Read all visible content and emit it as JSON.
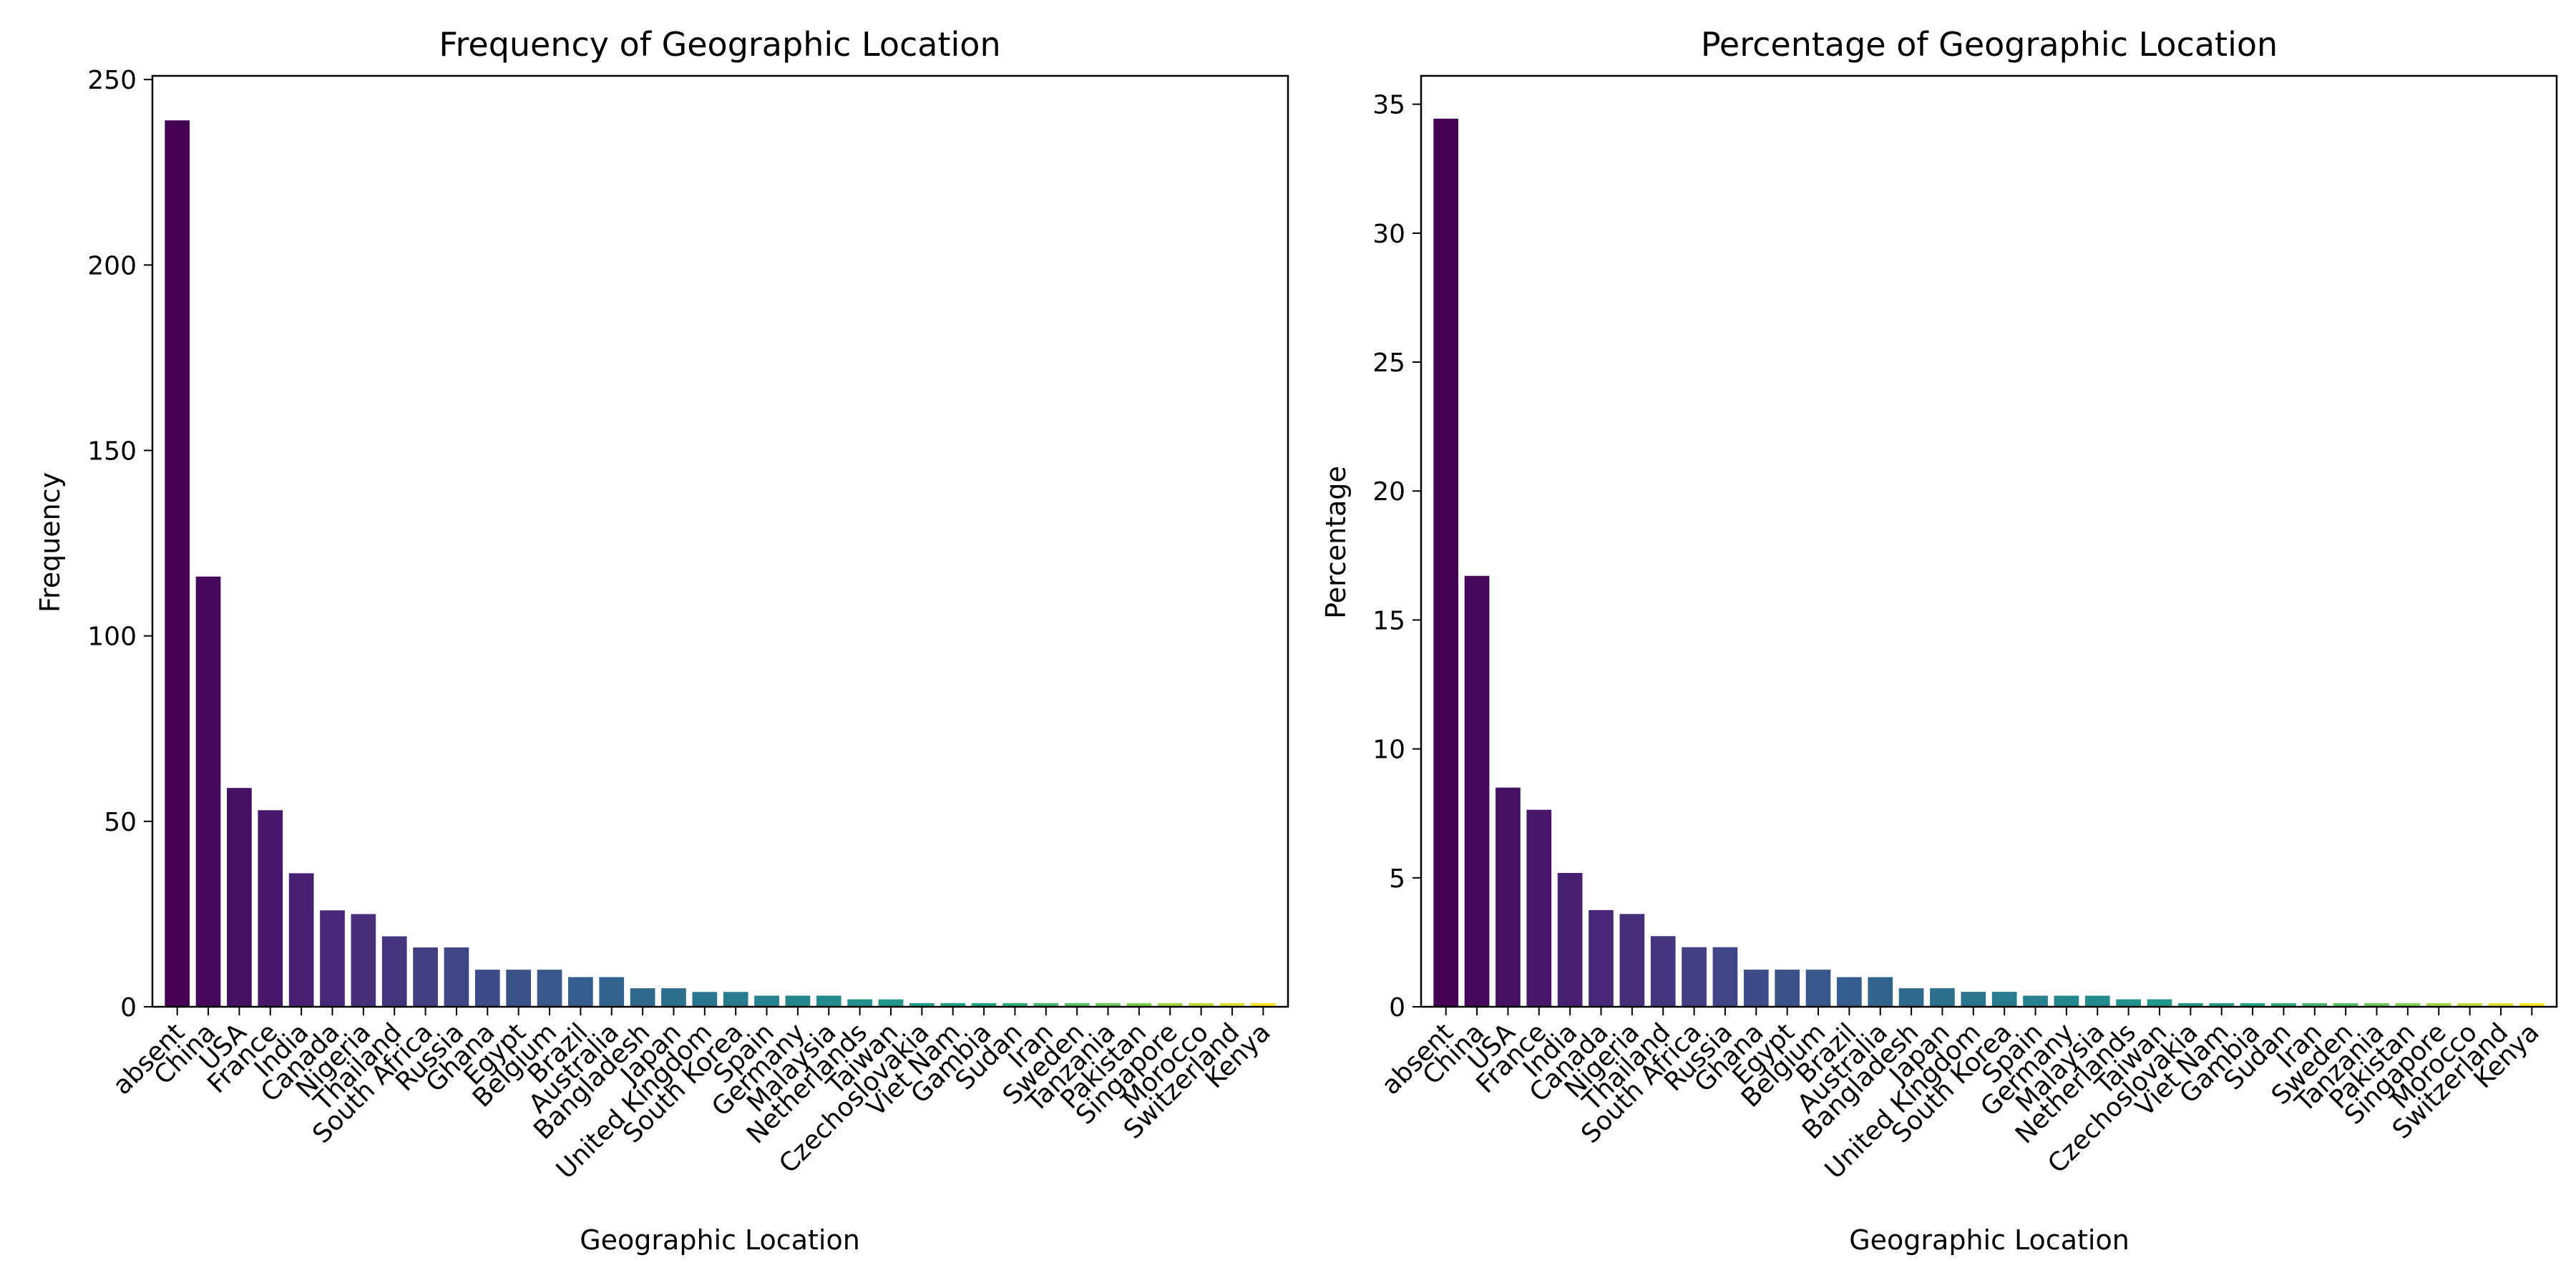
{
  "chart_data": [
    {
      "type": "bar",
      "title": "Frequency of Geographic Location",
      "xlabel": "Geographic Location",
      "ylabel": "Frequency",
      "ylim": [
        0,
        251
      ],
      "yticks": [
        0,
        50,
        100,
        150,
        200,
        250
      ],
      "grid": false,
      "categories": [
        "absent",
        "China",
        "USA",
        "France",
        "India",
        "Canada",
        "Nigeria",
        "Thailand",
        "South Africa",
        "Russia",
        "Ghana",
        "Egypt",
        "Belgium",
        "Brazil",
        "Australia",
        "Bangladesh",
        "Japan",
        "United Kingdom",
        "South Korea",
        "Spain",
        "Germany",
        "Malaysia",
        "Netherlands",
        "Taiwan",
        "Czechoslovakia",
        "Viet Nam",
        "Gambia",
        "Sudan",
        "Iran",
        "Sweden",
        "Tanzania",
        "Pakistan",
        "Singapore",
        "Morocco",
        "Switzerland",
        "Kenya"
      ],
      "values": [
        239,
        116,
        59,
        53,
        36,
        26,
        25,
        19,
        16,
        16,
        10,
        10,
        10,
        8,
        8,
        5,
        5,
        4,
        4,
        3,
        3,
        3,
        2,
        2,
        1,
        1,
        1,
        1,
        1,
        1,
        1,
        1,
        1,
        1,
        1,
        1
      ],
      "palette": "viridis"
    },
    {
      "type": "bar",
      "title": "Percentage of Geographic Location",
      "xlabel": "Geographic Location",
      "ylabel": "Percentage",
      "ylim": [
        0,
        36.1
      ],
      "yticks": [
        0,
        5,
        10,
        15,
        20,
        25,
        30,
        35
      ],
      "grid": false,
      "categories": [
        "absent",
        "China",
        "USA",
        "France",
        "India",
        "Canada",
        "Nigeria",
        "Thailand",
        "South Africa",
        "Russia",
        "Ghana",
        "Egypt",
        "Belgium",
        "Brazil",
        "Australia",
        "Bangladesh",
        "Japan",
        "United Kingdom",
        "South Korea",
        "Spain",
        "Germany",
        "Malaysia",
        "Netherlands",
        "Taiwan",
        "Czechoslovakia",
        "Viet Nam",
        "Gambia",
        "Sudan",
        "Iran",
        "Sweden",
        "Tanzania",
        "Pakistan",
        "Singapore",
        "Morocco",
        "Switzerland",
        "Kenya"
      ],
      "values": [
        34.44,
        16.71,
        8.5,
        7.64,
        5.19,
        3.75,
        3.6,
        2.74,
        2.31,
        2.31,
        1.44,
        1.44,
        1.44,
        1.15,
        1.15,
        0.72,
        0.72,
        0.58,
        0.58,
        0.43,
        0.43,
        0.43,
        0.29,
        0.29,
        0.14,
        0.14,
        0.14,
        0.14,
        0.14,
        0.14,
        0.14,
        0.14,
        0.14,
        0.14,
        0.14,
        0.14
      ],
      "palette": "viridis"
    }
  ]
}
